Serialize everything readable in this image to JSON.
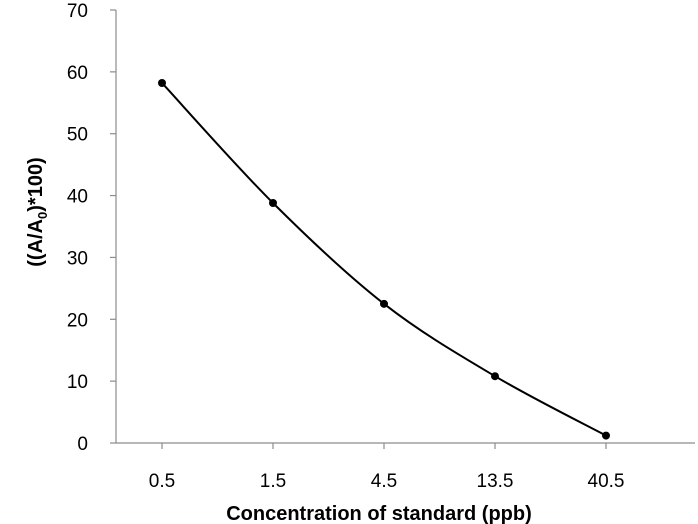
{
  "chart_data": {
    "type": "line",
    "title": "",
    "xlabel": "Concentration of standard (ppb)",
    "ylabel_main": "((A/A",
    "ylabel_sub": "0",
    "ylabel_tail": ")*100)",
    "categories": [
      "0.5",
      "1.5",
      "4.5",
      "13.5",
      "40.5"
    ],
    "series": [
      {
        "values": [
          58.2,
          38.8,
          22.5,
          10.8,
          1.2
        ]
      }
    ],
    "ylim": [
      0,
      70
    ],
    "yticks": [
      "0",
      "10",
      "20",
      "30",
      "40",
      "50",
      "60",
      "70"
    ],
    "grid": false,
    "smooth": true,
    "colors": {
      "line": "#000000",
      "axis": "#8c8c8c",
      "text": "#000000"
    }
  }
}
